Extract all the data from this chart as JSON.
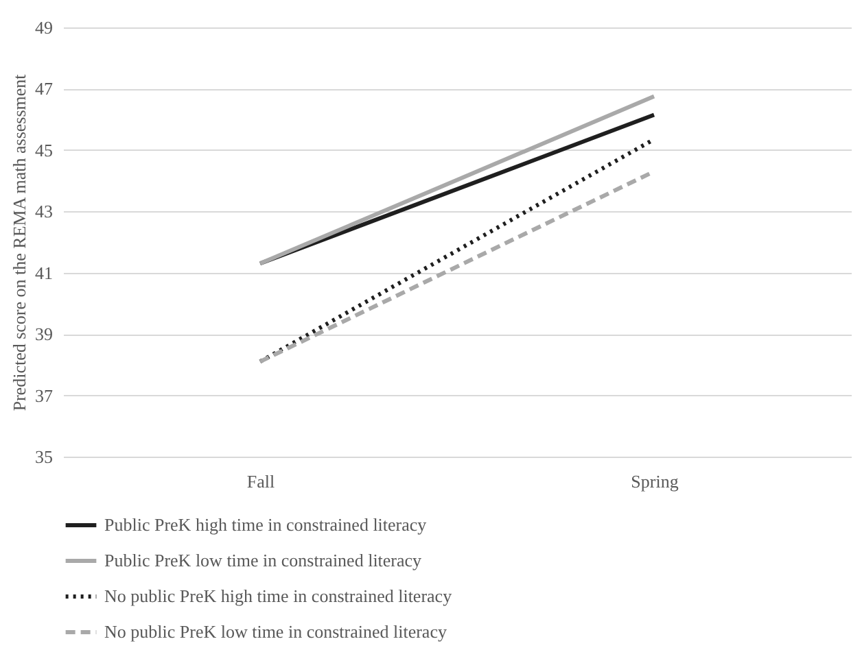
{
  "chart_data": {
    "type": "line",
    "ylabel": "Predicted score on the REMA math assessment",
    "categories": [
      "Fall",
      "Spring"
    ],
    "series": [
      {
        "name": "Public PreK high time in constrained literacy",
        "color": "#1f1f1f",
        "line_style": "solid",
        "values": [
          41.3,
          46.15
        ]
      },
      {
        "name": "Public PreK low time in constrained literacy",
        "color": "#a9a9a9",
        "line_style": "solid",
        "values": [
          41.3,
          46.75
        ]
      },
      {
        "name": "No public PreK high time in constrained literacy",
        "color": "#1f1f1f",
        "line_style": "dotted",
        "values": [
          38.1,
          45.35
        ]
      },
      {
        "name": "No public PreK low time in constrained literacy",
        "color": "#a9a9a9",
        "line_style": "dashed",
        "values": [
          38.1,
          44.3
        ]
      }
    ],
    "ylim": [
      35,
      49
    ],
    "yticks": [
      35,
      37,
      39,
      41,
      43,
      45,
      47,
      49
    ],
    "grid": "y",
    "legend": "bottom",
    "marker": "none"
  }
}
